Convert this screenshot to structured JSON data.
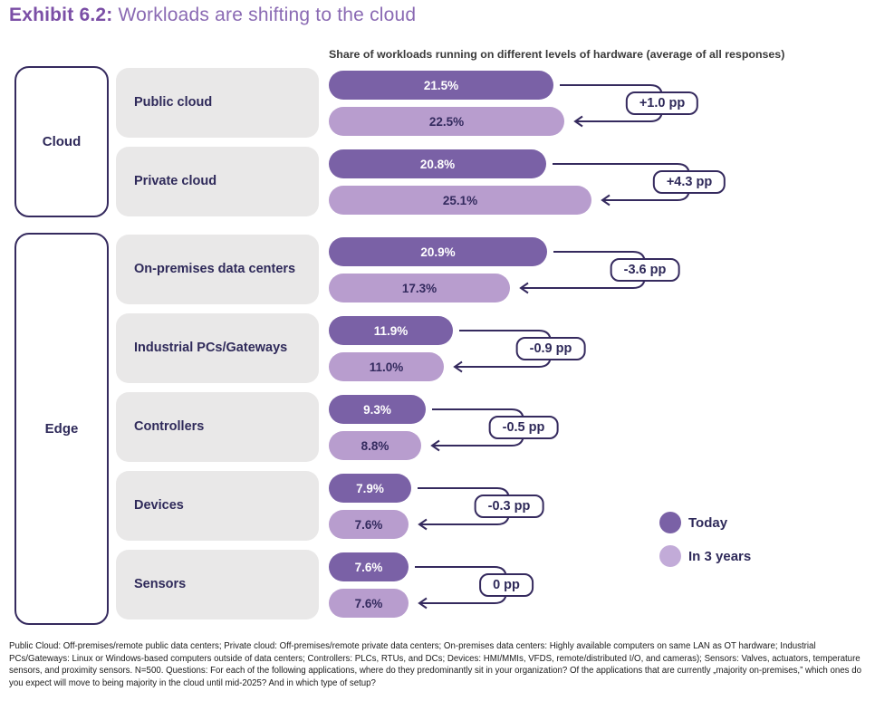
{
  "title": {
    "prefix": "Exhibit 6.2:",
    "rest": "Workloads are shifting to the cloud"
  },
  "subtitle": "Share of workloads running on different levels of hardware (average of all responses)",
  "chart_data": {
    "type": "bar",
    "orientation": "horizontal",
    "title": "Share of workloads running on different levels of hardware (average of all responses)",
    "unit": "%",
    "value_suffix": "%",
    "categories": [
      "Public cloud",
      "Private cloud",
      "On-premises data centers",
      "Industrial PCs/Gateways",
      "Controllers",
      "Devices",
      "Sensors"
    ],
    "series": [
      {
        "name": "Today",
        "color": "#7a61a6",
        "values": [
          21.5,
          20.8,
          20.9,
          11.9,
          9.3,
          7.9,
          7.6
        ]
      },
      {
        "name": "In 3 years",
        "color": "#b89dce",
        "values": [
          22.5,
          25.1,
          17.3,
          11.0,
          8.8,
          7.6,
          7.6
        ]
      }
    ],
    "deltas": [
      "+1.0 pp",
      "+4.3 pp",
      "-3.6 pp",
      "-0.9 pp",
      "-0.5 pp",
      "-0.3 pp",
      "0 pp"
    ],
    "groups": [
      {
        "label": "Cloud",
        "categories": [
          "Public cloud",
          "Private cloud"
        ]
      },
      {
        "label": "Edge",
        "categories": [
          "On-premises data centers",
          "Industrial PCs/Gateways",
          "Controllers",
          "Devices",
          "Sensors"
        ]
      }
    ],
    "legend_position": "right-bottom",
    "xlim": [
      0,
      26
    ]
  },
  "legend": [
    {
      "label": "Today",
      "color": "#7a61a6"
    },
    {
      "label": "In 3 years",
      "color": "#b89dce"
    }
  ],
  "colors": {
    "today": "#7a61a6",
    "in_3_years": "#b89dce",
    "outline_indigo": "#352a5e",
    "category_box": "#e9e8e8",
    "title_accent": "#7b4fa6",
    "title_text": "#8a6ab3",
    "subtitle_text": "#3a3a3a"
  },
  "footnote": "Public Cloud: Off-premises/remote public data centers; Private cloud: Off-premises/remote private data centers; On-premises data centers: Highly available computers on same LAN as OT hardware; Industrial PCs/Gateways: Linux or Windows-based computers outside of data centers; Controllers: PLCs, RTUs, and DCs; Devices: HMI/MMIs, VFDS, remote/distributed I/O, and cameras); Sensors: Valves, actuators, temperature sensors, and proximity sensors. N=500. Questions: For each of the following applications, where do they predominantly sit in your organization? Of the applications that are currently „majority on-premises,” which ones do you expect will move to being majority in the cloud until mid-2025? And in which type of setup?"
}
